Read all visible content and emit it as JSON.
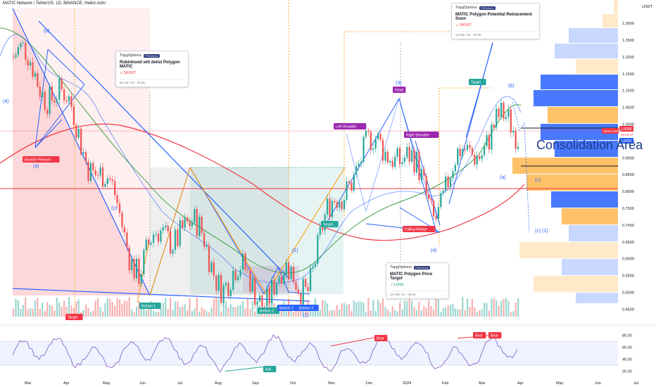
{
  "header": {
    "symbol_line": "MATIC Network / TetherUS, 1D, BINANCE, Heikin Ashi"
  },
  "price_axis": {
    "currency": "USDT",
    "ticks": [
      "1.3000",
      "1.2500",
      "1.2000",
      "1.1500",
      "1.1000",
      "1.0500",
      "1.0000",
      "0.9500",
      "0.9000",
      "0.8500",
      "0.8000",
      "0.7500",
      "0.7000",
      "0.6500",
      "0.6000",
      "0.5500",
      "0.5000",
      "0.4500"
    ],
    "last_price": "1.0008",
    "symbol_tag": "MATICUSDT",
    "countdown": "23:10:47",
    "secondary_tag": "1.0001"
  },
  "time_axis": [
    "Mar",
    "Apr",
    "May",
    "Jun",
    "Jul",
    "Aug",
    "Sep",
    "Oct",
    "Nov",
    "Dec",
    "2024",
    "Feb",
    "Mar",
    "Apr",
    "May",
    "Jun",
    "Jul"
  ],
  "rsi_axis": [
    "80.00",
    "60.00",
    "40.00",
    "20.00"
  ],
  "ideas": [
    {
      "brand": "TopgOptions",
      "badge": "PREMIUM",
      "title": "Robinhood will delist Polygon MATIC",
      "side": "↘ SHORT",
      "date": "09 Jun '23 · 20:05"
    },
    {
      "brand": "TopgOptions",
      "badge": "PREMIUM",
      "title": "MATIC Polygon Potential Retracement Soon",
      "side": "↘ SHORT",
      "date": "12 Mar '24 · 09:30"
    },
    {
      "brand": "TopgOptions",
      "badge": "PREMIUM",
      "title": "MATIC Polygon Price Target",
      "side": "↗ LONG",
      "date": "10 Feb '24 · 09:40"
    }
  ],
  "labels": {
    "bearish_pennant": "Bearish Pennant",
    "target_left": "Target",
    "bottom1": "Bottom 1",
    "bottom2a": "Bottom 2",
    "bottom2b": "Bottom 2",
    "bottom3": "Bottom 3",
    "left_shoulder": "Left Shoulder",
    "head": "Head",
    "right_shoulder": "Right Shoulder",
    "target_mid": "Target",
    "falling_wedge": "Falling Wedge",
    "target_top": "Target",
    "consolidation": "Consolidation Area",
    "bull": "Bull",
    "bear1": "Bear",
    "bear2": "Bear",
    "bear3": "Bear"
  },
  "wave_labels": [
    "(4)",
    "(b)",
    "(a)",
    "(c)",
    "(1)",
    "(2)",
    "(3)",
    "(4)",
    "(b)",
    "(a)",
    "(c)",
    "(c) (1)"
  ],
  "colors": {
    "up": "#26a69a",
    "down": "#ef5350",
    "blue": "#2962ff",
    "orange": "#ff9800",
    "purple": "#9c27b0",
    "ma_red": "#f23645",
    "ma_green": "#43a047",
    "volume_profile_blue": "#2962ff",
    "volume_profile_orange": "#ffb74d"
  },
  "chart_data": {
    "type": "candlestick",
    "heikin_ashi": true,
    "price_range": [
      0.43,
      1.34
    ],
    "close_path": [
      {
        "month": "Mar 2023",
        "close": 1.2
      },
      {
        "month": "Apr 2023",
        "close": 1.1
      },
      {
        "month": "May 2023",
        "close": 0.87
      },
      {
        "month": "Jun 2023",
        "close": 0.58
      },
      {
        "month": "Jul 2023",
        "close": 0.72
      },
      {
        "month": "Aug 2023",
        "close": 0.55
      },
      {
        "month": "Sep 2023",
        "close": 0.51
      },
      {
        "month": "Oct 2023",
        "close": 0.55
      },
      {
        "month": "Nov 2023",
        "close": 0.87
      },
      {
        "month": "Dec 2023",
        "close": 0.95
      },
      {
        "month": "Jan 2024",
        "close": 0.76
      },
      {
        "month": "Feb 2024",
        "close": 0.95
      },
      {
        "month": "Mar 2024",
        "close": 1.0
      }
    ],
    "rsi_range": [
      10,
      90
    ],
    "rsi_levels": [
      30,
      70
    ]
  }
}
